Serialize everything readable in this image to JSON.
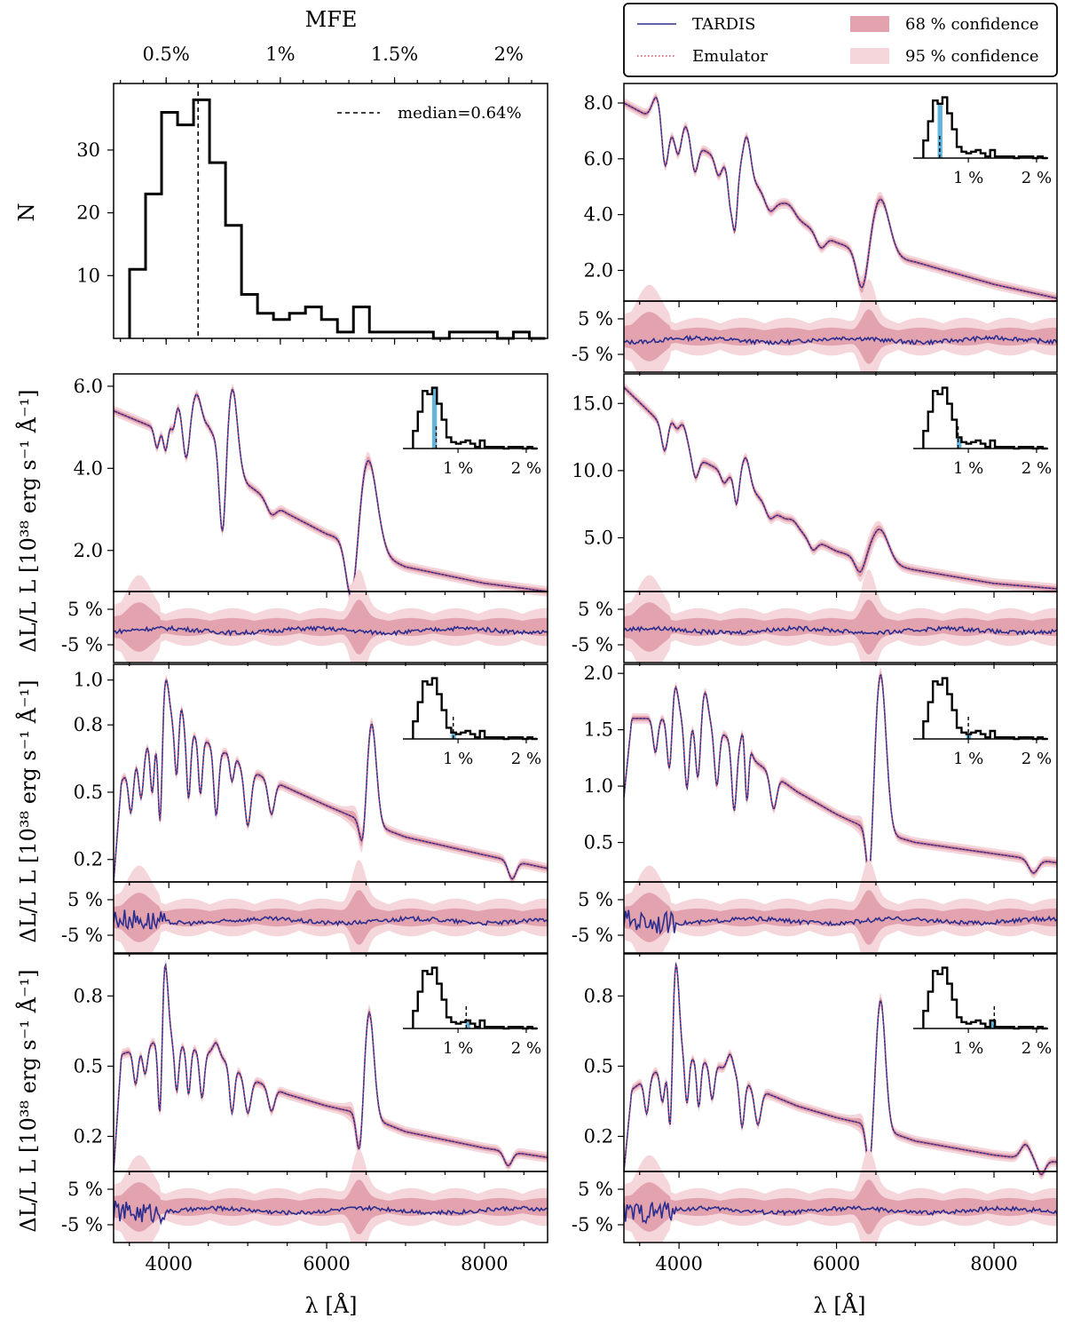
{
  "chart_data": {
    "type": "line",
    "colors": {
      "tardis": "#2b2d8f",
      "emulator": "#d0435e",
      "band68": "#e3a3ae",
      "band95": "#f4d6db",
      "inset_mark": "#62b5d9"
    },
    "legend": {
      "tardis": "TARDIS",
      "emulator": "Emulator",
      "c68": "68 % confidence",
      "c95": "95 % confidence"
    },
    "histogram": {
      "title": "MFE",
      "ylabel": "N",
      "median_label": "median=0.64%",
      "median": 0.64,
      "top_ticks": [
        "0.5%",
        "1%",
        "1.5%",
        "2%"
      ],
      "top_tick_values": [
        0.5,
        1.0,
        1.5,
        2.0
      ],
      "y_ticks": [
        "10",
        "20",
        "30"
      ],
      "y_tick_values": [
        10,
        20,
        30
      ],
      "bin_edges": [
        0.34,
        0.41,
        0.48,
        0.55,
        0.62,
        0.69,
        0.76,
        0.83,
        0.9,
        0.97,
        1.04,
        1.11,
        1.18,
        1.25,
        1.32,
        1.39,
        1.46,
        1.53,
        1.6,
        1.67,
        1.74,
        1.81,
        1.88,
        1.95,
        2.02,
        2.09,
        2.16
      ],
      "counts": [
        11,
        23,
        36,
        34,
        38,
        28,
        18,
        7,
        4,
        3,
        4,
        5,
        3,
        1,
        5,
        1,
        1,
        1,
        1,
        0,
        1,
        1,
        1,
        0,
        1,
        0
      ]
    },
    "x_axis": {
      "label": "λ [Å]",
      "ticks": [
        "4000",
        "6000",
        "8000"
      ],
      "tick_values": [
        4000,
        6000,
        8000
      ]
    },
    "panels": [
      {
        "id": "tr",
        "y_ticks": [
          "2.0",
          "4.0",
          "6.0",
          "8.0"
        ],
        "y_values": [
          2,
          4,
          6,
          8
        ],
        "ylim": [
          0.9,
          8.7
        ],
        "inset_value": 0.58,
        "continuum": [
          [
            3300,
            8.0
          ],
          [
            3500,
            7.7
          ],
          [
            4500,
            6.0
          ],
          [
            5000,
            5.0
          ],
          [
            5500,
            3.8
          ],
          [
            6000,
            3.0
          ],
          [
            6300,
            2.7
          ],
          [
            7000,
            2.3
          ],
          [
            8000,
            1.5
          ],
          [
            8800,
            1.0
          ]
        ],
        "features": [
          [
            3820,
            1.6,
            40
          ],
          [
            3990,
            0.8,
            40
          ],
          [
            4200,
            1.0,
            40
          ],
          [
            4500,
            0.6,
            40
          ],
          [
            4650,
            1.2,
            30
          ],
          [
            4710,
            2.0,
            30
          ],
          [
            5150,
            0.5,
            60
          ],
          [
            5800,
            0.5,
            60
          ],
          [
            6330,
            1.5,
            70
          ]
        ],
        "emissions": [
          [
            3720,
            0.9,
            60
          ],
          [
            4080,
            0.5,
            50
          ],
          [
            4860,
            1.5,
            50
          ],
          [
            5400,
            0.3,
            80
          ],
          [
            6560,
            2.0,
            110
          ]
        ]
      },
      {
        "id": "ml",
        "ylabel": "L [10³⁸ erg s⁻¹ Å⁻¹]",
        "y_ticks": [
          "2.0",
          "4.0",
          "6.0"
        ],
        "y_values": [
          2,
          4,
          6
        ],
        "ylim": [
          1.0,
          6.3
        ],
        "inset_value": 0.68,
        "continuum": [
          [
            3300,
            5.4
          ],
          [
            3800,
            5.0
          ],
          [
            4500,
            5.0
          ],
          [
            5000,
            3.6
          ],
          [
            5500,
            2.9
          ],
          [
            6000,
            2.4
          ],
          [
            6300,
            2.2
          ],
          [
            7000,
            1.6
          ],
          [
            8000,
            1.2
          ],
          [
            8800,
            1.0
          ]
        ],
        "features": [
          [
            3850,
            0.5,
            30
          ],
          [
            3960,
            0.6,
            30
          ],
          [
            4060,
            0.5,
            30
          ],
          [
            4220,
            0.9,
            40
          ],
          [
            4680,
            2.2,
            40
          ],
          [
            5300,
            0.3,
            60
          ],
          [
            6320,
            1.6,
            70
          ]
        ],
        "emissions": [
          [
            4100,
            0.6,
            60
          ],
          [
            4350,
            0.8,
            60
          ],
          [
            4810,
            1.8,
            60
          ],
          [
            6530,
            2.2,
            110
          ]
        ]
      },
      {
        "id": "mr",
        "y_ticks": [
          "5.0",
          "10.0",
          "15.0"
        ],
        "y_values": [
          5,
          10,
          15
        ],
        "ylim": [
          1.0,
          17.2
        ],
        "inset_value": 0.85,
        "continuum": [
          [
            3300,
            16.2
          ],
          [
            3600,
            14.5
          ],
          [
            4200,
            11.0
          ],
          [
            4800,
            9.2
          ],
          [
            5200,
            7.0
          ],
          [
            5600,
            5.2
          ],
          [
            6000,
            4.0
          ],
          [
            6400,
            3.3
          ],
          [
            7000,
            2.6
          ],
          [
            8000,
            1.6
          ],
          [
            8800,
            1.2
          ]
        ],
        "features": [
          [
            3820,
            2.0,
            40
          ],
          [
            4210,
            1.5,
            40
          ],
          [
            4570,
            0.8,
            40
          ],
          [
            4730,
            2.0,
            30
          ],
          [
            5150,
            0.8,
            50
          ],
          [
            5700,
            0.8,
            50
          ],
          [
            6300,
            1.2,
            60
          ]
        ],
        "emissions": [
          [
            3900,
            1.0,
            50
          ],
          [
            4050,
            1.5,
            50
          ],
          [
            4850,
            2.0,
            50
          ],
          [
            5450,
            0.4,
            60
          ],
          [
            6550,
            2.5,
            110
          ]
        ]
      },
      {
        "id": "bl1",
        "ylabel": "L [10³⁸ erg s⁻¹ Å⁻¹]",
        "y_ticks": [
          "0.2",
          "0.5",
          "0.8",
          "1.0"
        ],
        "y_values": [
          0.2,
          0.5,
          0.8,
          1.0
        ],
        "ylim": [
          0.1,
          1.07
        ],
        "inset_value": 0.93,
        "continuum": [
          [
            3300,
            0.1
          ],
          [
            3400,
            0.55
          ],
          [
            3800,
            0.75
          ],
          [
            4000,
            0.82
          ],
          [
            4500,
            0.72
          ],
          [
            5000,
            0.6
          ],
          [
            5500,
            0.52
          ],
          [
            6000,
            0.44
          ],
          [
            6400,
            0.38
          ],
          [
            7000,
            0.3
          ],
          [
            8000,
            0.22
          ],
          [
            8800,
            0.16
          ]
        ],
        "features": [
          [
            3520,
            0.2,
            30
          ],
          [
            3650,
            0.2,
            30
          ],
          [
            3790,
            0.25,
            25
          ],
          [
            3890,
            0.45,
            25
          ],
          [
            4100,
            0.25,
            25
          ],
          [
            4250,
            0.3,
            25
          ],
          [
            4400,
            0.25,
            25
          ],
          [
            4600,
            0.3,
            30
          ],
          [
            4800,
            0.2,
            30
          ],
          [
            5000,
            0.25,
            40
          ],
          [
            5300,
            0.15,
            40
          ],
          [
            6460,
            0.15,
            40
          ],
          [
            8350,
            0.08,
            50
          ]
        ],
        "emissions": [
          [
            3960,
            0.2,
            40
          ],
          [
            4150,
            0.1,
            30
          ],
          [
            4800,
            0.1,
            40
          ],
          [
            6570,
            0.45,
            60
          ]
        ]
      },
      {
        "id": "br1",
        "y_ticks": [
          "0.5",
          "1.0",
          "1.5",
          "2.0"
        ],
        "y_values": [
          0.5,
          1.0,
          1.5,
          2.0
        ],
        "ylim": [
          0.15,
          2.08
        ],
        "inset_value": 1.0,
        "continuum": [
          [
            3300,
            0.9
          ],
          [
            3400,
            1.6
          ],
          [
            4000,
            1.6
          ],
          [
            4500,
            1.5
          ],
          [
            5000,
            1.2
          ],
          [
            5500,
            0.95
          ],
          [
            6000,
            0.75
          ],
          [
            6400,
            0.62
          ],
          [
            7000,
            0.5
          ],
          [
            8000,
            0.4
          ],
          [
            8800,
            0.32
          ]
        ],
        "features": [
          [
            3700,
            0.3,
            30
          ],
          [
            3880,
            0.5,
            30
          ],
          [
            4100,
            0.6,
            30
          ],
          [
            4240,
            0.5,
            30
          ],
          [
            4480,
            0.5,
            30
          ],
          [
            4700,
            0.6,
            30
          ],
          [
            4860,
            0.8,
            25
          ],
          [
            5200,
            0.3,
            40
          ],
          [
            6420,
            0.55,
            40
          ],
          [
            8500,
            0.12,
            60
          ]
        ],
        "emissions": [
          [
            3950,
            0.3,
            40
          ],
          [
            4330,
            0.3,
            40
          ],
          [
            4850,
            0.4,
            40
          ],
          [
            6560,
            1.4,
            70
          ]
        ]
      },
      {
        "id": "bl2",
        "ylabel": "L [10³⁸ erg s⁻¹ Å⁻¹]",
        "y_ticks": [
          "0.2",
          "0.5",
          "0.8"
        ],
        "y_values": [
          0.2,
          0.5,
          0.8
        ],
        "ylim": [
          0.05,
          0.98
        ],
        "inset_value": 1.12,
        "continuum": [
          [
            3300,
            0.05
          ],
          [
            3400,
            0.55
          ],
          [
            3800,
            0.6
          ],
          [
            4000,
            0.6
          ],
          [
            4600,
            0.55
          ],
          [
            5000,
            0.45
          ],
          [
            5500,
            0.38
          ],
          [
            6000,
            0.33
          ],
          [
            6400,
            0.3
          ],
          [
            7000,
            0.22
          ],
          [
            8000,
            0.15
          ],
          [
            8800,
            0.11
          ]
        ],
        "features": [
          [
            3580,
            0.15,
            30
          ],
          [
            3700,
            0.12,
            30
          ],
          [
            3890,
            0.4,
            25
          ],
          [
            4100,
            0.2,
            25
          ],
          [
            4250,
            0.2,
            25
          ],
          [
            4420,
            0.2,
            30
          ],
          [
            4800,
            0.2,
            30
          ],
          [
            5000,
            0.15,
            40
          ],
          [
            5300,
            0.1,
            40
          ],
          [
            6420,
            0.2,
            40
          ],
          [
            8300,
            0.06,
            50
          ]
        ],
        "emissions": [
          [
            3950,
            0.35,
            40
          ],
          [
            4600,
            0.05,
            40
          ],
          [
            6540,
            0.45,
            60
          ]
        ]
      },
      {
        "id": "br2",
        "y_ticks": [
          "0.2",
          "0.5",
          "0.8"
        ],
        "y_values": [
          0.2,
          0.5,
          0.8
        ],
        "ylim": [
          0.05,
          0.98
        ],
        "inset_value": 1.38,
        "continuum": [
          [
            3300,
            0.05
          ],
          [
            3400,
            0.4
          ],
          [
            3800,
            0.5
          ],
          [
            4000,
            0.55
          ],
          [
            4500,
            0.5
          ],
          [
            5000,
            0.4
          ],
          [
            5500,
            0.33
          ],
          [
            6000,
            0.28
          ],
          [
            6400,
            0.25
          ],
          [
            7000,
            0.18
          ],
          [
            8000,
            0.12
          ],
          [
            8800,
            0.09
          ]
        ],
        "features": [
          [
            3590,
            0.15,
            30
          ],
          [
            3790,
            0.15,
            30
          ],
          [
            3890,
            0.35,
            25
          ],
          [
            4100,
            0.2,
            25
          ],
          [
            4250,
            0.2,
            25
          ],
          [
            4420,
            0.15,
            30
          ],
          [
            4800,
            0.2,
            30
          ],
          [
            5000,
            0.15,
            40
          ],
          [
            6420,
            0.2,
            40
          ],
          [
            8600,
            0.06,
            50
          ]
        ],
        "emissions": [
          [
            3960,
            0.4,
            40
          ],
          [
            4650,
            0.08,
            40
          ],
          [
            6560,
            0.55,
            60
          ],
          [
            8400,
            0.06,
            60
          ]
        ]
      }
    ],
    "residual": {
      "ylabel": "ΔL/L",
      "y_ticks": [
        "5 %",
        "-5 %"
      ],
      "y_values": [
        5,
        -5
      ],
      "ylim": [
        -10,
        10
      ]
    },
    "inset_ticks": [
      "1 %",
      "2 %"
    ],
    "inset_tick_values": [
      1,
      2
    ]
  }
}
